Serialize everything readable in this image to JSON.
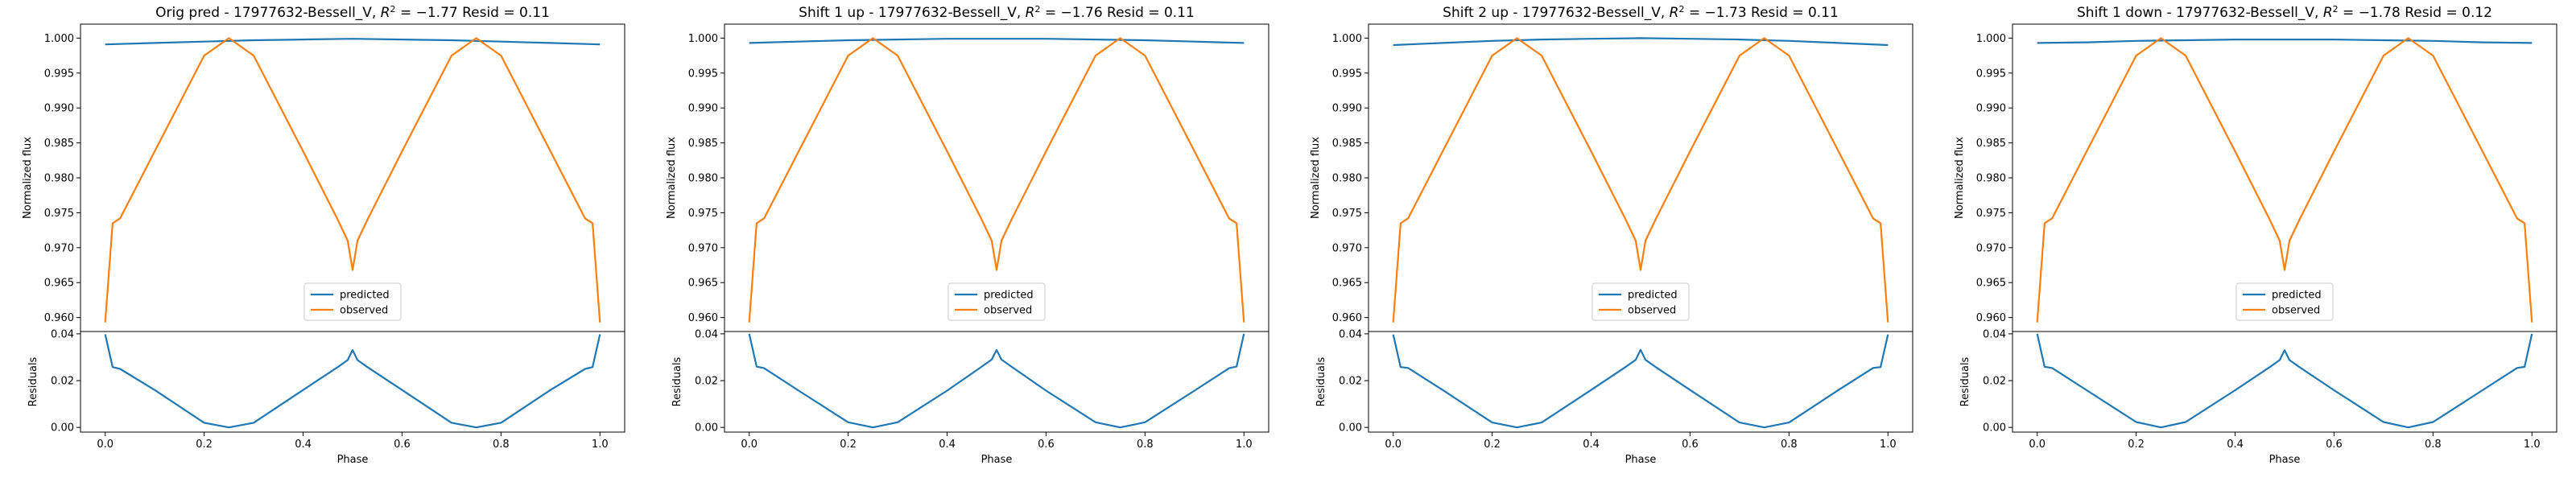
{
  "figure": {
    "background": "#ffffff"
  },
  "colors": {
    "predicted": "#1f77b4",
    "observed": "#ff7f0e",
    "residual": "#1f77b4"
  },
  "chart_data": [
    {
      "type": "line",
      "title_text": "Orig pred - 17977632-Bessell_V, ",
      "r2_text": "R",
      "r2_sup": "2",
      "title_value": " = −1.77 Resid = 0.11",
      "xlabel": "Phase",
      "ylabel": "Normalized flux",
      "ylabel_resid": "Residuals",
      "xlim": [
        -0.05,
        1.05
      ],
      "ylim": [
        0.958,
        1.002
      ],
      "ylim_resid": [
        -0.002,
        0.041
      ],
      "xticks": [
        "0.0",
        "0.2",
        "0.4",
        "0.6",
        "0.8",
        "1.0"
      ],
      "yticks": [
        "1.000",
        "0.995",
        "0.990",
        "0.985",
        "0.980",
        "0.975",
        "0.970",
        "0.965",
        "0.960"
      ],
      "yticks_resid": [
        "0.04",
        "0.02",
        "0.00"
      ],
      "legend": {
        "placement": "lower center",
        "entries": [
          "predicted",
          "observed"
        ]
      },
      "series": [
        {
          "name": "predicted",
          "x": [
            0,
            0.1,
            0.2,
            0.3,
            0.4,
            0.5,
            0.6,
            0.7,
            0.8,
            0.9,
            1.0
          ],
          "y": [
            0.9991,
            0.9993,
            0.9995,
            0.9997,
            0.9998,
            0.9999,
            0.9998,
            0.9997,
            0.9995,
            0.9993,
            0.9991
          ]
        },
        {
          "name": "observed",
          "x": [
            0.0,
            0.015,
            0.03,
            0.1,
            0.2,
            0.25,
            0.3,
            0.4,
            0.47,
            0.49,
            0.5,
            0.51,
            0.53,
            0.6,
            0.7,
            0.75,
            0.8,
            0.9,
            0.97,
            0.985,
            1.0
          ],
          "y": [
            0.9593,
            0.9735,
            0.9742,
            0.9838,
            0.9975,
            1.0,
            0.9975,
            0.9838,
            0.974,
            0.971,
            0.9668,
            0.971,
            0.974,
            0.9838,
            0.9975,
            1.0,
            0.9975,
            0.9838,
            0.9742,
            0.9735,
            0.9593
          ]
        }
      ],
      "residuals": {
        "x": [
          0.0,
          0.015,
          0.03,
          0.1,
          0.2,
          0.25,
          0.3,
          0.4,
          0.47,
          0.49,
          0.5,
          0.51,
          0.53,
          0.6,
          0.7,
          0.75,
          0.8,
          0.9,
          0.97,
          0.985,
          1.0
        ],
        "y": [
          0.0398,
          0.0258,
          0.025,
          0.016,
          0.002,
          0.0,
          0.002,
          0.016,
          0.0258,
          0.0288,
          0.0331,
          0.0288,
          0.0258,
          0.016,
          0.002,
          0.0,
          0.002,
          0.016,
          0.025,
          0.0258,
          0.0398
        ]
      }
    },
    {
      "type": "line",
      "title_text": "Shift 1 up - 17977632-Bessell_V, ",
      "r2_text": "R",
      "r2_sup": "2",
      "title_value": " = −1.76 Resid = 0.11",
      "xlabel": "Phase",
      "ylabel": "Normalized flux",
      "ylabel_resid": "Residuals",
      "xlim": [
        -0.05,
        1.05
      ],
      "ylim": [
        0.958,
        1.002
      ],
      "ylim_resid": [
        -0.002,
        0.041
      ],
      "xticks": [
        "0.0",
        "0.2",
        "0.4",
        "0.6",
        "0.8",
        "1.0"
      ],
      "yticks": [
        "1.000",
        "0.995",
        "0.990",
        "0.985",
        "0.980",
        "0.975",
        "0.970",
        "0.965",
        "0.960"
      ],
      "yticks_resid": [
        "0.04",
        "0.02",
        "0.00"
      ],
      "legend": {
        "placement": "lower center",
        "entries": [
          "predicted",
          "observed"
        ]
      },
      "series": [
        {
          "name": "predicted",
          "x": [
            0,
            0.1,
            0.2,
            0.3,
            0.4,
            0.5,
            0.6,
            0.7,
            0.8,
            0.9,
            1.0
          ],
          "y": [
            0.9993,
            0.9995,
            0.9997,
            0.9998,
            0.9999,
            0.9999,
            0.9999,
            0.9998,
            0.9997,
            0.9995,
            0.9993
          ]
        },
        {
          "name": "observed",
          "x": [
            0.0,
            0.015,
            0.03,
            0.1,
            0.2,
            0.25,
            0.3,
            0.4,
            0.47,
            0.49,
            0.5,
            0.51,
            0.53,
            0.6,
            0.7,
            0.75,
            0.8,
            0.9,
            0.97,
            0.985,
            1.0
          ],
          "y": [
            0.9593,
            0.9735,
            0.9742,
            0.9838,
            0.9975,
            1.0,
            0.9975,
            0.9838,
            0.974,
            0.971,
            0.9668,
            0.971,
            0.974,
            0.9838,
            0.9975,
            1.0,
            0.9975,
            0.9838,
            0.9742,
            0.9735,
            0.9593
          ]
        }
      ],
      "residuals": {
        "x": [
          0.0,
          0.015,
          0.03,
          0.1,
          0.2,
          0.25,
          0.3,
          0.4,
          0.47,
          0.49,
          0.5,
          0.51,
          0.53,
          0.6,
          0.7,
          0.75,
          0.8,
          0.9,
          0.97,
          0.985,
          1.0
        ],
        "y": [
          0.04,
          0.026,
          0.0253,
          0.0157,
          0.0022,
          0.0,
          0.0022,
          0.0157,
          0.026,
          0.029,
          0.0331,
          0.029,
          0.026,
          0.0157,
          0.0022,
          0.0,
          0.0022,
          0.0157,
          0.0253,
          0.026,
          0.04
        ]
      }
    },
    {
      "type": "line",
      "title_text": "Shift 2 up - 17977632-Bessell_V, ",
      "r2_text": "R",
      "r2_sup": "2",
      "title_value": " = −1.73 Resid = 0.11",
      "xlabel": "Phase",
      "ylabel": "Normalized flux",
      "ylabel_resid": "Residuals",
      "xlim": [
        -0.05,
        1.05
      ],
      "ylim": [
        0.958,
        1.002
      ],
      "ylim_resid": [
        -0.002,
        0.041
      ],
      "xticks": [
        "0.0",
        "0.2",
        "0.4",
        "0.6",
        "0.8",
        "1.0"
      ],
      "yticks": [
        "1.000",
        "0.995",
        "0.990",
        "0.985",
        "0.980",
        "0.975",
        "0.970",
        "0.965",
        "0.960"
      ],
      "yticks_resid": [
        "0.04",
        "0.02",
        "0.00"
      ],
      "legend": {
        "placement": "lower center",
        "entries": [
          "predicted",
          "observed"
        ]
      },
      "series": [
        {
          "name": "predicted",
          "x": [
            0,
            0.1,
            0.2,
            0.3,
            0.4,
            0.5,
            0.6,
            0.7,
            0.8,
            0.9,
            1.0
          ],
          "y": [
            0.999,
            0.9993,
            0.9996,
            0.9998,
            0.9999,
            1.0,
            0.9999,
            0.9998,
            0.9996,
            0.9993,
            0.999
          ]
        },
        {
          "name": "observed",
          "x": [
            0.0,
            0.015,
            0.03,
            0.1,
            0.2,
            0.25,
            0.3,
            0.4,
            0.47,
            0.49,
            0.5,
            0.51,
            0.53,
            0.6,
            0.7,
            0.75,
            0.8,
            0.9,
            0.97,
            0.985,
            1.0
          ],
          "y": [
            0.9593,
            0.9735,
            0.9742,
            0.9838,
            0.9975,
            1.0,
            0.9975,
            0.9838,
            0.974,
            0.971,
            0.9668,
            0.971,
            0.974,
            0.9838,
            0.9975,
            1.0,
            0.9975,
            0.9838,
            0.9742,
            0.9735,
            0.9593
          ]
        }
      ],
      "residuals": {
        "x": [
          0.0,
          0.015,
          0.03,
          0.1,
          0.2,
          0.25,
          0.3,
          0.4,
          0.47,
          0.49,
          0.5,
          0.51,
          0.53,
          0.6,
          0.7,
          0.75,
          0.8,
          0.9,
          0.97,
          0.985,
          1.0
        ],
        "y": [
          0.0397,
          0.0258,
          0.0254,
          0.016,
          0.0021,
          0.0,
          0.0021,
          0.016,
          0.0259,
          0.0289,
          0.0332,
          0.0289,
          0.0259,
          0.016,
          0.0021,
          0.0,
          0.0021,
          0.016,
          0.0254,
          0.0258,
          0.0397
        ]
      }
    },
    {
      "type": "line",
      "title_text": "Shift 1 down - 17977632-Bessell_V, ",
      "r2_text": "R",
      "r2_sup": "2",
      "title_value": " = −1.78 Resid = 0.12",
      "xlabel": "Phase",
      "ylabel": "Normalized flux",
      "ylabel_resid": "Residuals",
      "xlim": [
        -0.05,
        1.05
      ],
      "ylim": [
        0.958,
        1.002
      ],
      "ylim_resid": [
        -0.002,
        0.041
      ],
      "xticks": [
        "0.0",
        "0.2",
        "0.4",
        "0.6",
        "0.8",
        "1.0"
      ],
      "yticks": [
        "1.000",
        "0.995",
        "0.990",
        "0.985",
        "0.980",
        "0.975",
        "0.970",
        "0.965",
        "0.960"
      ],
      "yticks_resid": [
        "0.04",
        "0.02",
        "0.00"
      ],
      "legend": {
        "placement": "lower center",
        "entries": [
          "predicted",
          "observed"
        ]
      },
      "series": [
        {
          "name": "predicted",
          "x": [
            0,
            0.1,
            0.2,
            0.3,
            0.4,
            0.5,
            0.6,
            0.7,
            0.8,
            0.9,
            1.0
          ],
          "y": [
            0.9993,
            0.9994,
            0.9996,
            0.9997,
            0.9998,
            0.9998,
            0.9998,
            0.9997,
            0.9996,
            0.9994,
            0.9993
          ]
        },
        {
          "name": "observed",
          "x": [
            0.0,
            0.015,
            0.03,
            0.1,
            0.2,
            0.25,
            0.3,
            0.4,
            0.47,
            0.49,
            0.5,
            0.51,
            0.53,
            0.6,
            0.7,
            0.75,
            0.8,
            0.9,
            0.97,
            0.985,
            1.0
          ],
          "y": [
            0.9593,
            0.9735,
            0.9742,
            0.9838,
            0.9975,
            1.0,
            0.9975,
            0.9838,
            0.974,
            0.971,
            0.9668,
            0.971,
            0.974,
            0.9838,
            0.9975,
            1.0,
            0.9975,
            0.9838,
            0.9742,
            0.9735,
            0.9593
          ]
        }
      ],
      "residuals": {
        "x": [
          0.0,
          0.015,
          0.03,
          0.1,
          0.2,
          0.25,
          0.3,
          0.4,
          0.47,
          0.49,
          0.5,
          0.51,
          0.53,
          0.6,
          0.7,
          0.75,
          0.8,
          0.9,
          0.97,
          0.985,
          1.0
        ],
        "y": [
          0.04,
          0.0259,
          0.0254,
          0.0159,
          0.0023,
          0.0,
          0.0023,
          0.0159,
          0.0258,
          0.0288,
          0.033,
          0.0288,
          0.0258,
          0.0159,
          0.0023,
          0.0,
          0.0023,
          0.0159,
          0.0254,
          0.0259,
          0.04
        ]
      }
    }
  ]
}
